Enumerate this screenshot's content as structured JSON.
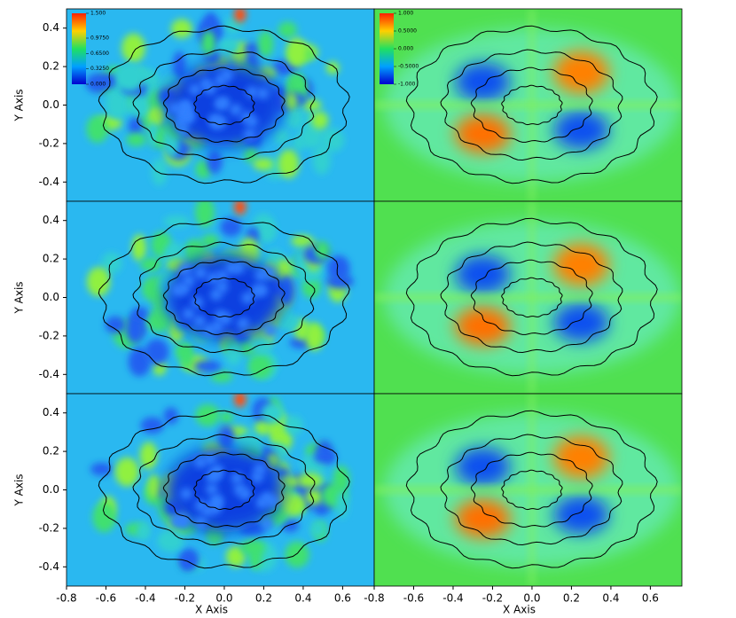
{
  "chart_data": [
    {
      "type": "heatmap",
      "colormap": "jet",
      "xlim": [
        -0.8,
        0.76
      ],
      "ylim": [
        -0.5,
        0.5
      ],
      "field": "magnitude",
      "ylabel": "Y Axis",
      "yticks": [
        -0.4,
        -0.2,
        {
          "value": 0,
          "label": "0.0"
        },
        0.2,
        0.4
      ],
      "colorbar_ticks": [
        {
          "value": 1.5,
          "label": "1.500"
        },
        {
          "value": 0.975,
          "label": "0.9750"
        },
        {
          "value": 0.65,
          "label": "0.6500"
        },
        {
          "value": 0.325,
          "label": "0.3250"
        },
        {
          "value": 0,
          "label": "0.000"
        }
      ],
      "colorbar_lim": [
        0,
        1.5
      ]
    },
    {
      "type": "heatmap",
      "colormap": "jet",
      "xlim": [
        -0.8,
        0.76
      ],
      "ylim": [
        -0.5,
        0.5
      ],
      "field": "signed",
      "colorbar_ticks": [
        {
          "value": 1,
          "label": "1.000"
        },
        {
          "value": 0.5,
          "label": "0.5000"
        },
        {
          "value": 0,
          "label": "0.000"
        },
        {
          "value": -0.5,
          "label": "-0.5000"
        },
        {
          "value": -1,
          "label": "-1.000"
        }
      ],
      "colorbar_lim": [
        -1,
        1
      ]
    },
    {
      "type": "heatmap",
      "colormap": "jet",
      "xlim": [
        -0.8,
        0.76
      ],
      "ylim": [
        -0.5,
        0.5
      ],
      "field": "magnitude",
      "ylabel": "Y Axis",
      "yticks": [
        -0.4,
        -0.2,
        {
          "value": 0,
          "label": "0.0"
        },
        0.2,
        0.4
      ]
    },
    {
      "type": "heatmap",
      "colormap": "jet",
      "xlim": [
        -0.8,
        0.76
      ],
      "ylim": [
        -0.5,
        0.5
      ],
      "field": "signed"
    },
    {
      "type": "heatmap",
      "colormap": "jet",
      "xlim": [
        -0.8,
        0.76
      ],
      "ylim": [
        -0.5,
        0.5
      ],
      "field": "magnitude",
      "ylabel": "Y Axis",
      "yticks": [
        -0.4,
        -0.2,
        {
          "value": 0,
          "label": "0.0"
        },
        0.2,
        0.4
      ],
      "xlabel": "X Axis",
      "xticks": [
        -0.8,
        -0.6,
        -0.4,
        -0.2,
        {
          "value": 0,
          "label": "0.0"
        },
        0.2,
        0.4,
        0.6
      ]
    },
    {
      "type": "heatmap",
      "colormap": "jet",
      "xlim": [
        -0.8,
        0.76
      ],
      "ylim": [
        -0.5,
        0.5
      ],
      "field": "signed",
      "xlabel": "X Axis",
      "xticks": [
        -0.8,
        -0.6,
        -0.4,
        -0.2,
        {
          "value": 0,
          "label": "0.0"
        },
        0.2,
        0.4,
        0.6
      ]
    }
  ]
}
